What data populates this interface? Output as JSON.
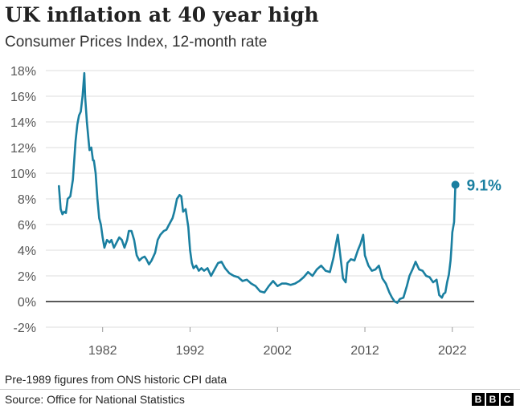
{
  "title": "UK inflation at 40 year high",
  "subtitle": "Consumer Prices Index, 12-month rate",
  "footnote": "Pre-1989 figures from ONS historic CPI data",
  "source": "Source: Office for National Statistics",
  "logo": [
    "B",
    "B",
    "C"
  ],
  "colors": {
    "line": "#1a7fa0",
    "grid": "#dddddd",
    "zero": "#222222"
  },
  "chart_data": {
    "type": "line",
    "title": "UK inflation at 40 year high",
    "subtitle": "Consumer Prices Index, 12-month rate",
    "xlabel": "",
    "ylabel": "",
    "xlim": [
      1975.5,
      2024.5
    ],
    "ylim": [
      -2,
      18
    ],
    "x_ticks": [
      1982,
      1992,
      2002,
      2012,
      2022
    ],
    "x_tick_labels": [
      "1982",
      "1992",
      "2002",
      "2012",
      "2022"
    ],
    "y_ticks": [
      -2,
      0,
      2,
      4,
      6,
      8,
      10,
      12,
      14,
      16,
      18
    ],
    "y_tick_labels": [
      "-2%",
      "0%",
      "2%",
      "4%",
      "6%",
      "8%",
      "10%",
      "12%",
      "14%",
      "16%",
      "18%"
    ],
    "grid": true,
    "end_annotation": "9.1%",
    "series": [
      {
        "name": "CPI 12-month rate",
        "x": [
          1977.0,
          1977.2,
          1977.4,
          1977.6,
          1977.8,
          1978.0,
          1978.3,
          1978.6,
          1978.9,
          1979.1,
          1979.3,
          1979.5,
          1979.7,
          1979.9,
          1980.0,
          1980.2,
          1980.4,
          1980.5,
          1980.7,
          1980.9,
          1981.0,
          1981.2,
          1981.4,
          1981.6,
          1981.8,
          1982.0,
          1982.2,
          1982.5,
          1982.8,
          1983.0,
          1983.3,
          1983.6,
          1983.9,
          1984.2,
          1984.5,
          1984.8,
          1985.0,
          1985.3,
          1985.6,
          1985.9,
          1986.2,
          1986.5,
          1986.8,
          1987.0,
          1987.3,
          1987.6,
          1988.0,
          1988.3,
          1988.6,
          1989.0,
          1989.3,
          1989.6,
          1990.0,
          1990.2,
          1990.5,
          1990.8,
          1991.0,
          1991.2,
          1991.5,
          1991.8,
          1992.0,
          1992.2,
          1992.4,
          1992.7,
          1993.0,
          1993.3,
          1993.6,
          1994.0,
          1994.4,
          1994.8,
          1995.2,
          1995.6,
          1996.0,
          1996.5,
          1997.0,
          1997.5,
          1998.0,
          1998.5,
          1999.0,
          1999.5,
          2000.0,
          2000.5,
          2001.0,
          2001.5,
          2002.0,
          2002.5,
          2003.0,
          2003.5,
          2004.0,
          2004.5,
          2005.0,
          2005.5,
          2006.0,
          2006.5,
          2007.0,
          2007.5,
          2008.0,
          2008.4,
          2008.7,
          2008.9,
          2009.2,
          2009.5,
          2009.8,
          2010.0,
          2010.4,
          2010.8,
          2011.2,
          2011.5,
          2011.8,
          2012.0,
          2012.4,
          2012.8,
          2013.2,
          2013.6,
          2014.0,
          2014.4,
          2014.8,
          2015.1,
          2015.4,
          2015.7,
          2016.0,
          2016.4,
          2016.8,
          2017.1,
          2017.5,
          2017.8,
          2018.2,
          2018.6,
          2019.0,
          2019.4,
          2019.8,
          2020.2,
          2020.5,
          2020.8,
          2021.0,
          2021.2,
          2021.4,
          2021.6,
          2021.8,
          2021.9,
          2022.0,
          2022.2,
          2022.35
        ],
        "values": [
          9.0,
          7.2,
          6.8,
          7.0,
          6.9,
          8.0,
          8.2,
          9.5,
          12.5,
          13.8,
          14.5,
          14.8,
          16.0,
          17.8,
          16.0,
          14.0,
          12.5,
          11.8,
          12.0,
          11.0,
          11.0,
          10.0,
          8.0,
          6.5,
          6.0,
          5.0,
          4.2,
          4.8,
          4.6,
          4.8,
          4.2,
          4.6,
          5.0,
          4.8,
          4.2,
          4.8,
          5.5,
          5.5,
          4.8,
          3.6,
          3.2,
          3.4,
          3.5,
          3.3,
          2.9,
          3.2,
          3.8,
          4.8,
          5.2,
          5.5,
          5.6,
          6.0,
          6.5,
          7.0,
          8.0,
          8.3,
          8.2,
          7.0,
          7.2,
          5.8,
          4.0,
          3.0,
          2.6,
          2.8,
          2.4,
          2.6,
          2.4,
          2.6,
          2.0,
          2.5,
          3.0,
          3.1,
          2.6,
          2.2,
          2.0,
          1.9,
          1.6,
          1.7,
          1.4,
          1.2,
          0.8,
          0.7,
          1.2,
          1.6,
          1.2,
          1.4,
          1.4,
          1.3,
          1.4,
          1.6,
          1.9,
          2.3,
          2.0,
          2.5,
          2.8,
          2.4,
          2.3,
          3.4,
          4.5,
          5.2,
          3.5,
          1.8,
          1.5,
          3.0,
          3.3,
          3.2,
          4.0,
          4.5,
          5.2,
          3.6,
          2.8,
          2.4,
          2.5,
          2.8,
          1.8,
          1.4,
          0.7,
          0.3,
          0.0,
          -0.1,
          0.2,
          0.3,
          1.2,
          2.0,
          2.6,
          3.1,
          2.5,
          2.4,
          2.0,
          1.9,
          1.5,
          1.7,
          0.5,
          0.3,
          0.6,
          0.7,
          1.5,
          2.1,
          3.2,
          4.2,
          5.4,
          6.2,
          9.1
        ]
      }
    ]
  }
}
